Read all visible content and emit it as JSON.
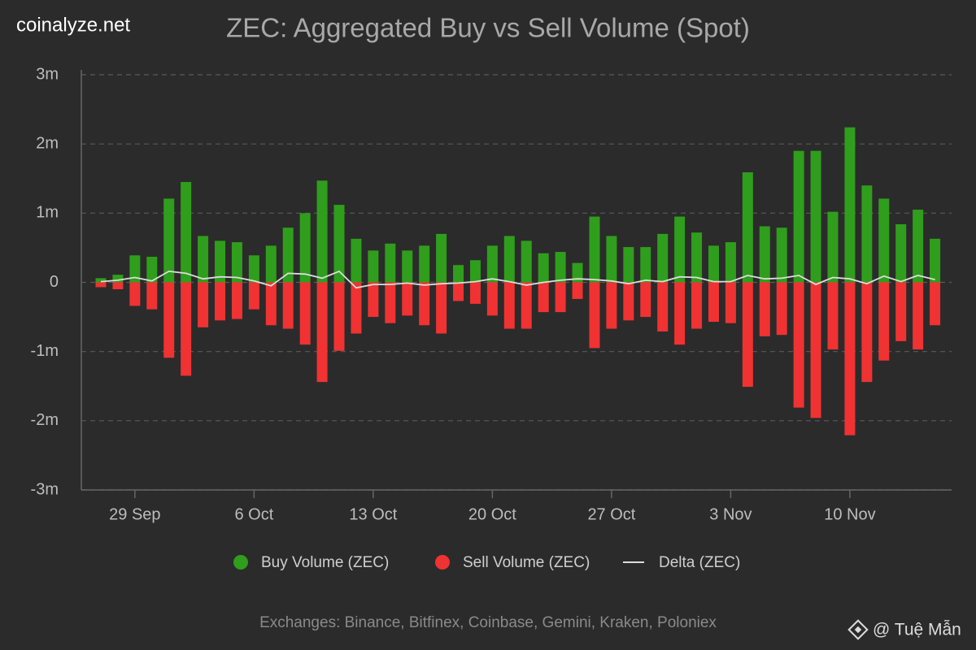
{
  "brand": "coinalyze.net",
  "credit": "@ Tuệ Mẫn",
  "chart_data": {
    "type": "bar",
    "title": "ZEC: Aggregated Buy vs Sell Volume (Spot)",
    "footnote": "Exchanges: Binance, Bitfinex, Coinbase, Gemini, Kraken, Poloniex",
    "categories": [
      null,
      null,
      "29 Sep",
      null,
      null,
      null,
      null,
      null,
      null,
      "6 Oct",
      null,
      null,
      null,
      null,
      null,
      null,
      "13 Oct",
      null,
      null,
      null,
      null,
      null,
      null,
      "20 Oct",
      null,
      null,
      null,
      null,
      null,
      null,
      "27 Oct",
      null,
      null,
      null,
      null,
      null,
      null,
      "3 Nov",
      null,
      null,
      null,
      null,
      null,
      null,
      "10 Nov",
      null,
      null,
      null,
      null,
      null
    ],
    "ylim": [
      -3000000,
      3000000
    ],
    "yticks": [
      {
        "value": -3000000,
        "label": "-3m"
      },
      {
        "value": -2000000,
        "label": "-2m"
      },
      {
        "value": -1000000,
        "label": "-1m"
      },
      0,
      {
        "value": 1000000,
        "label": "1m"
      },
      {
        "value": 2000000,
        "label": "2m"
      },
      {
        "value": 3000000,
        "label": "3m"
      }
    ],
    "grid": true,
    "series": [
      {
        "name": "Buy Volume (ZEC)",
        "color": "#2f9e1c",
        "type": "bar",
        "values": [
          60000,
          110000,
          390000,
          370000,
          1210000,
          1450000,
          670000,
          600000,
          580000,
          390000,
          530000,
          790000,
          1000000,
          1470000,
          1120000,
          630000,
          460000,
          560000,
          460000,
          530000,
          700000,
          250000,
          320000,
          530000,
          670000,
          600000,
          420000,
          440000,
          280000,
          950000,
          670000,
          510000,
          510000,
          700000,
          950000,
          720000,
          530000,
          580000,
          1590000,
          810000,
          790000,
          1900000,
          1900000,
          1020000,
          2240000,
          1400000,
          1210000,
          840000,
          1050000,
          630000
        ]
      },
      {
        "name": "Sell Volume (ZEC)",
        "color": "#f03232",
        "type": "bar",
        "values": [
          -70000,
          -100000,
          -340000,
          -390000,
          -1090000,
          -1350000,
          -650000,
          -550000,
          -530000,
          -390000,
          -620000,
          -670000,
          -900000,
          -1440000,
          -990000,
          -740000,
          -500000,
          -590000,
          -480000,
          -620000,
          -740000,
          -270000,
          -310000,
          -480000,
          -670000,
          -670000,
          -430000,
          -430000,
          -240000,
          -950000,
          -670000,
          -550000,
          -500000,
          -710000,
          -900000,
          -670000,
          -570000,
          -590000,
          -1510000,
          -780000,
          -760000,
          -1810000,
          -1960000,
          -970000,
          -2210000,
          -1440000,
          -1130000,
          -850000,
          -970000,
          -620000
        ]
      },
      {
        "name": "Delta (ZEC)",
        "color": "#dddddd",
        "type": "line",
        "values": [
          10000,
          30000,
          70000,
          20000,
          160000,
          130000,
          50000,
          80000,
          70000,
          20000,
          -50000,
          130000,
          120000,
          60000,
          160000,
          -80000,
          -30000,
          -30000,
          -10000,
          -40000,
          -20000,
          -10000,
          10000,
          50000,
          10000,
          -40000,
          0,
          30000,
          50000,
          40000,
          20000,
          -20000,
          30000,
          10000,
          80000,
          70000,
          10000,
          10000,
          100000,
          50000,
          60000,
          100000,
          -30000,
          70000,
          50000,
          -20000,
          90000,
          10000,
          100000,
          40000
        ]
      }
    ]
  }
}
